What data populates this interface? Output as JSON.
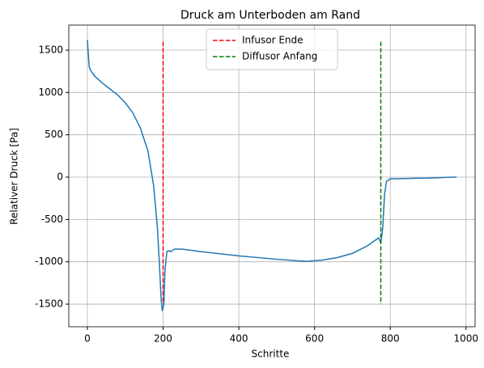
{
  "chart_data": {
    "type": "line",
    "title": "Druck am Unterboden am Rand",
    "x_label": "Schritte",
    "y_label": "Relativer Druck [Pa]",
    "xlim": [
      -49,
      1024
    ],
    "ylim": [
      -1767,
      1796
    ],
    "xticks": [
      0,
      200,
      400,
      600,
      800,
      1000
    ],
    "yticks": [
      -1500,
      -1000,
      -500,
      0,
      500,
      1000,
      1500
    ],
    "grid": true,
    "legend": "upper center",
    "series": [
      {
        "color": "#1f77b4",
        "dash": "solid",
        "x": [
          0,
          5,
          10,
          20,
          40,
          60,
          80,
          100,
          120,
          140,
          160,
          175,
          185,
          190,
          195,
          198,
          202,
          205,
          210,
          215,
          220,
          230,
          250,
          300,
          400,
          500,
          560,
          580,
          620,
          660,
          700,
          740,
          765,
          770,
          775,
          780,
          785,
          790,
          800,
          850,
          900,
          950,
          975
        ],
        "values": [
          1620,
          1300,
          1250,
          1190,
          1110,
          1040,
          970,
          880,
          760,
          580,
          310,
          -100,
          -600,
          -1000,
          -1450,
          -1580,
          -1500,
          -1100,
          -880,
          -870,
          -880,
          -850,
          -850,
          -880,
          -930,
          -970,
          -990,
          -995,
          -980,
          -950,
          -900,
          -810,
          -730,
          -720,
          -780,
          -600,
          -200,
          -50,
          -20,
          -15,
          -12,
          -2,
          0
        ]
      },
      {
        "name": "Infusor Ende",
        "color": "#ff0000",
        "dash": "dashed",
        "x": [
          200,
          200
        ],
        "values": [
          1600,
          -1500
        ]
      },
      {
        "name": "Diffusor Anfang",
        "color": "#008000",
        "dash": "dashed",
        "x": [
          775,
          775
        ],
        "values": [
          1600,
          -1500
        ]
      }
    ]
  }
}
